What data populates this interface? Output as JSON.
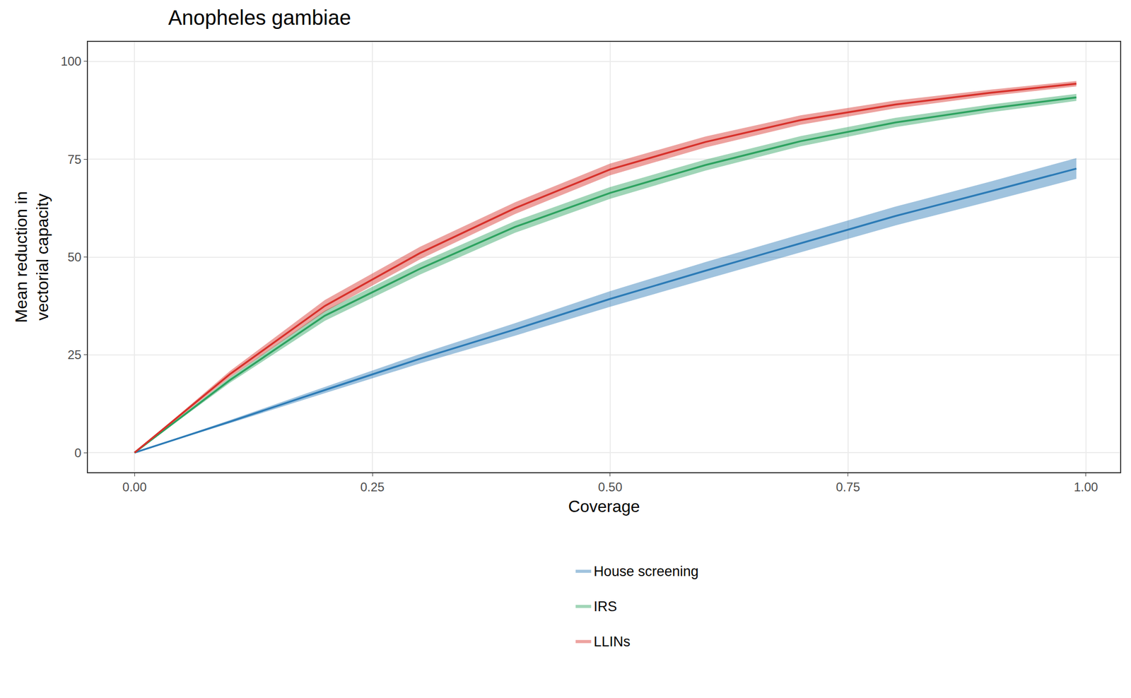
{
  "chart_data": {
    "type": "line",
    "title": "Anopheles gambiae",
    "x_label": "Coverage",
    "y_label": "Mean reduction in\nvectorial capacity",
    "x": [
      0,
      0.1,
      0.2,
      0.3,
      0.4,
      0.5,
      0.6,
      0.7,
      0.8,
      0.9,
      0.99
    ],
    "xlim": [
      -0.049,
      1.036
    ],
    "xticks": [
      {
        "value": 0,
        "label": "0.00"
      },
      {
        "value": 0.25,
        "label": "0.25"
      },
      {
        "value": 0.5,
        "label": "0.50"
      },
      {
        "value": 0.75,
        "label": "0.75"
      },
      {
        "value": 1,
        "label": "1.00"
      }
    ],
    "ylim": [
      -5,
      105
    ],
    "yticks": [
      0,
      25,
      50,
      75,
      100
    ],
    "grid": true,
    "legend": "bottom",
    "series": [
      {
        "name": "House screening",
        "color": "#2c7bb6",
        "values": [
          0,
          7.9,
          16,
          24,
          31.5,
          39.3,
          46.5,
          53.5,
          60.5,
          66.8,
          72.6
        ],
        "lower": [
          0,
          7.5,
          15.2,
          22.8,
          29.9,
          37.3,
          44.3,
          51.2,
          58.1,
          64.3,
          70.0
        ],
        "upper": [
          0,
          8.3,
          16.8,
          25.2,
          33.1,
          41.3,
          48.7,
          55.8,
          62.9,
          69.3,
          75.3
        ]
      },
      {
        "name": "IRS",
        "color": "#2ca25f",
        "values": [
          0,
          18.5,
          35,
          47,
          57.7,
          66.4,
          73.5,
          79.6,
          84.4,
          88,
          90.8
        ],
        "lower": [
          0,
          17.8,
          33.7,
          45.5,
          56.2,
          64.9,
          72.1,
          78.3,
          83.2,
          87,
          89.9
        ],
        "upper": [
          0,
          19.2,
          36.3,
          48.5,
          59.2,
          67.9,
          74.9,
          80.9,
          85.6,
          89,
          91.7
        ]
      },
      {
        "name": "LLINs",
        "color": "#d7302a",
        "values": [
          0,
          20,
          37.5,
          51,
          62.5,
          72.4,
          79.4,
          85,
          89,
          92,
          94.3
        ],
        "lower": [
          0,
          19.2,
          36,
          49.4,
          61,
          70.9,
          78,
          83.8,
          88,
          91.2,
          93.6
        ],
        "upper": [
          0,
          20.8,
          39,
          52.6,
          64,
          73.9,
          80.8,
          86.2,
          90,
          92.8,
          95
        ]
      }
    ]
  }
}
